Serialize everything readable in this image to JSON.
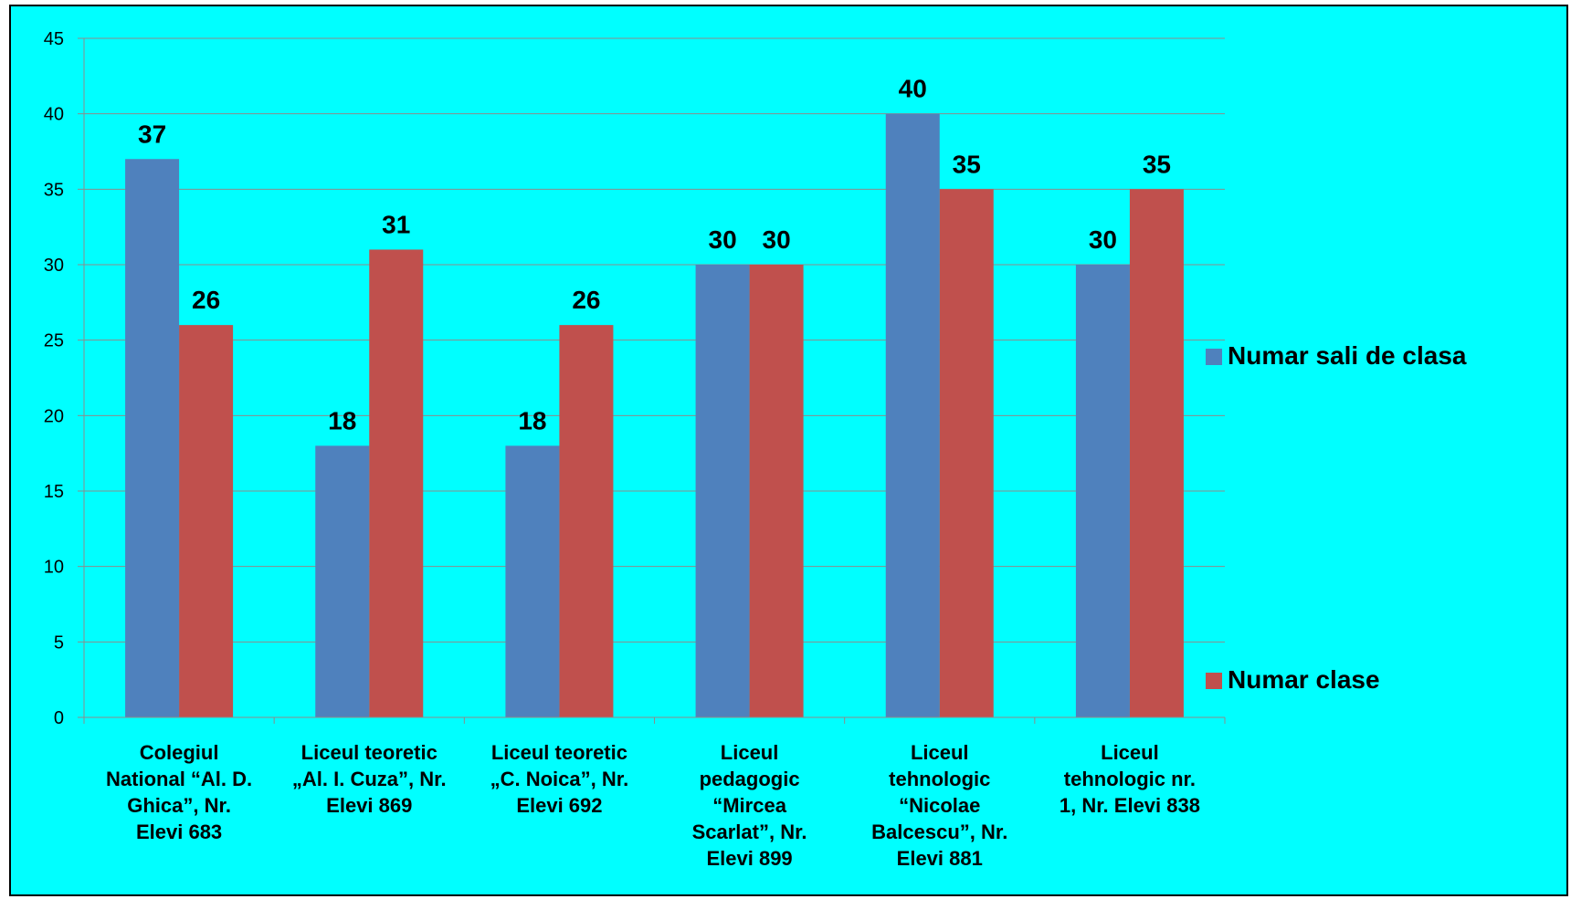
{
  "chart_data": {
    "type": "bar",
    "categories": [
      [
        "Colegiul",
        "National “Al. D.",
        "Ghica”, Nr.",
        "Elevi 683"
      ],
      [
        "Liceul teoretic",
        "„Al. I. Cuza”, Nr.",
        "Elevi 869"
      ],
      [
        "Liceul teoretic",
        "„C. Noica”, Nr.",
        "Elevi 692"
      ],
      [
        "Liceul",
        "pedagogic",
        "“Mircea",
        "Scarlat”, Nr.",
        "Elevi 899"
      ],
      [
        "Liceul",
        "tehnologic",
        "“Nicolae",
        "Balcescu”, Nr.",
        "Elevi 881"
      ],
      [
        "Liceul",
        "tehnologic nr.",
        "1, Nr. Elevi 838"
      ]
    ],
    "series": [
      {
        "name": "Numar sali de clasa",
        "values": [
          37,
          18,
          18,
          30,
          40,
          30
        ],
        "color": "#4f81bd"
      },
      {
        "name": "Numar clase",
        "values": [
          26,
          31,
          26,
          30,
          35,
          35
        ],
        "color": "#c0504d"
      }
    ],
    "yticks": [
      "0",
      "5",
      "10",
      "15",
      "20",
      "25",
      "30",
      "35",
      "40",
      "45"
    ],
    "ylim": [
      0,
      45
    ],
    "grid": true,
    "legend_position": "right",
    "data_labels": true,
    "background": "#00ffff"
  }
}
